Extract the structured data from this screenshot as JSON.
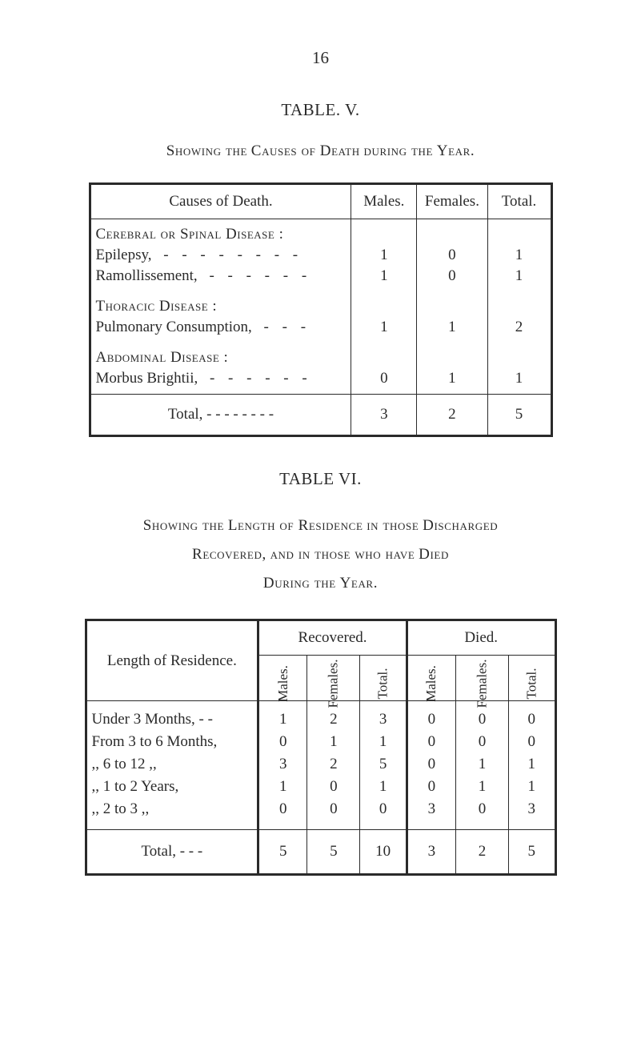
{
  "page_number": "16",
  "table_v": {
    "label": "TABLE. V.",
    "caption_prefix": "Showing the",
    "caption_caps1": "Causes of Death",
    "caption_mid": "during the",
    "caption_caps2": "Year.",
    "col_causes": "Causes of Death.",
    "col_males": "Males.",
    "col_females": "Females.",
    "col_total": "Total.",
    "groups": [
      {
        "title": "Cerebral or Spinal Disease :",
        "items": [
          {
            "label": "Epilepsy,",
            "dashes": "- - - - - - - -",
            "m": "1",
            "f": "0",
            "t": "1"
          },
          {
            "label": "Ramollissement,",
            "dashes": "- - - - - -",
            "m": "1",
            "f": "0",
            "t": "1"
          }
        ]
      },
      {
        "title": "Thoracic Disease :",
        "items": [
          {
            "label": "Pulmonary Consumption,",
            "dashes": "- - -",
            "m": "1",
            "f": "1",
            "t": "2"
          }
        ]
      },
      {
        "title": "Abdominal Disease :",
        "items": [
          {
            "label": "Morbus Brightii,",
            "dashes": "- - - - - -",
            "m": "0",
            "f": "1",
            "t": "1"
          }
        ]
      }
    ],
    "total_label": "Total, - - - - - - - -",
    "total_m": "3",
    "total_f": "2",
    "total_t": "5"
  },
  "table_vi": {
    "label": "TABLE VI.",
    "caption_line1_a": "Showing the",
    "caption_line1_b": "Length of Residence",
    "caption_line1_c": "in those",
    "caption_line1_d": "Discharged",
    "caption_line2_a": "Recovered,",
    "caption_line2_b": "and in those who have",
    "caption_line2_c": "Died",
    "caption_line3_a": "During the",
    "caption_line3_b": "Year.",
    "col_lor": "Length of Residence.",
    "col_recovered": "Recovered.",
    "col_died": "Died.",
    "sub_males": "Males.",
    "sub_females": "Females.",
    "sub_total": "Total.",
    "rows": [
      {
        "label": "Under 3 Months,  -   -",
        "rm": "1",
        "rf": "2",
        "rt": "3",
        "dm": "0",
        "df": "0",
        "dt": "0"
      },
      {
        "label": "From   3 to   6 Months,",
        "rm": "0",
        "rf": "1",
        "rt": "1",
        "dm": "0",
        "df": "0",
        "dt": "0"
      },
      {
        "label": "   ,,      6 to 12     ,,",
        "rm": "3",
        "rf": "2",
        "rt": "5",
        "dm": "0",
        "df": "1",
        "dt": "1"
      },
      {
        "label": "   ,,      1 to   2 Years,",
        "rm": "1",
        "rf": "0",
        "rt": "1",
        "dm": "0",
        "df": "1",
        "dt": "1"
      },
      {
        "label": "   ,,      2 to   3     ,,",
        "rm": "0",
        "rf": "0",
        "rt": "0",
        "dm": "3",
        "df": "0",
        "dt": "3"
      }
    ],
    "total_label": "Total,   -   -   -",
    "total_rm": "5",
    "total_rf": "5",
    "total_rt": "10",
    "total_dm": "3",
    "total_df": "2",
    "total_dt": "5"
  }
}
